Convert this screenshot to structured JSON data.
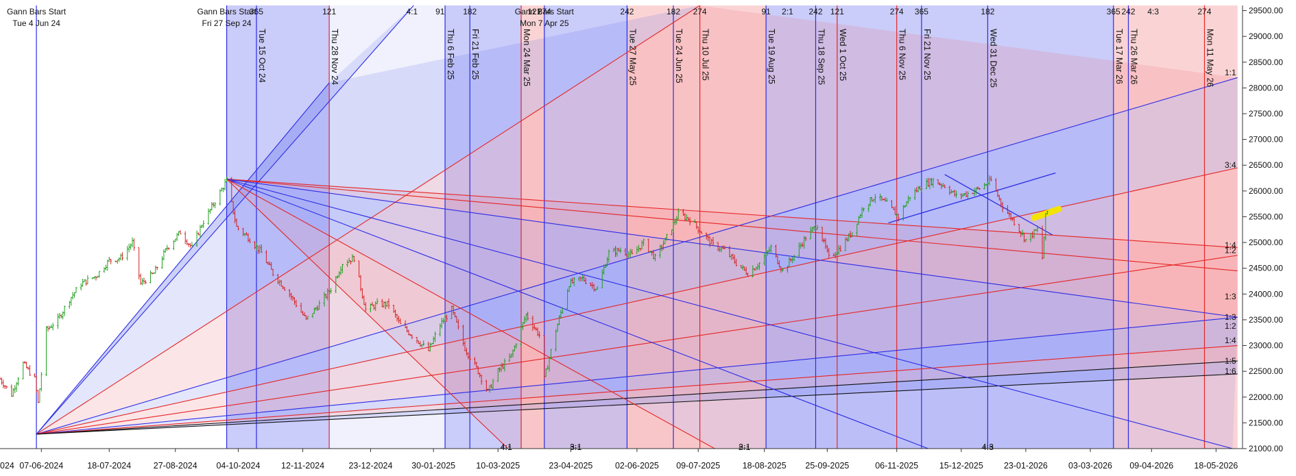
{
  "chart_data": {
    "type": "line",
    "title": "",
    "xlabel": "",
    "ylabel": "",
    "ylim": [
      21000,
      29600
    ],
    "x_range": [
      "2024-05-13",
      "2026-06-03"
    ],
    "y_ticks": [
      21000,
      21500,
      22000,
      22500,
      23000,
      23500,
      24000,
      24500,
      25000,
      25500,
      26000,
      26500,
      27000,
      27500,
      28000,
      28500,
      29000,
      29500
    ],
    "x_tick_labels": [
      {
        "date": "2024-06-07",
        "label": "07-06-2024"
      },
      {
        "date": "2024-07-18",
        "label": "18-07-2024"
      },
      {
        "date": "2024-08-27",
        "label": "27-08-2024"
      },
      {
        "date": "2024-10-04",
        "label": "04-10-2024"
      },
      {
        "date": "2024-11-12",
        "label": "12-11-2024"
      },
      {
        "date": "2024-12-23",
        "label": "23-12-2024"
      },
      {
        "date": "2025-01-30",
        "label": "30-01-2025"
      },
      {
        "date": "2025-03-10",
        "label": "10-03-2025"
      },
      {
        "date": "2025-04-23",
        "label": "23-04-2025"
      },
      {
        "date": "2025-06-02",
        "label": "02-06-2025"
      },
      {
        "date": "2025-07-09",
        "label": "09-07-2025"
      },
      {
        "date": "2025-08-18",
        "label": "18-08-2025"
      },
      {
        "date": "2025-09-25",
        "label": "25-09-2025"
      },
      {
        "date": "2025-11-06",
        "label": "06-11-2025"
      },
      {
        "date": "2025-12-15",
        "label": "15-12-2025"
      },
      {
        "date": "2026-01-23",
        "label": "23-01-2026"
      },
      {
        "date": "2026-03-03",
        "label": "03-03-2026"
      },
      {
        "date": "2026-04-09",
        "label": "09-04-2026"
      },
      {
        "date": "2026-05-18",
        "label": "18-05-2026"
      }
    ],
    "x_edge_label": "024",
    "gann_starts": [
      {
        "date": "2024-06-04",
        "label1": "Gann Bars Start",
        "label2": "Tue 4 Jun 24"
      },
      {
        "date": "2024-09-27",
        "label1": "Gann Bars Start",
        "label2": "Fri 27 Sep 24"
      },
      {
        "date": "2025-04-07",
        "label1": "Gann Bars Start",
        "label2": "Mon 7 Apr 25"
      }
    ],
    "time_cycle_lines": [
      {
        "date": "2024-06-04",
        "color": "blue",
        "label": ""
      },
      {
        "date": "2024-09-27",
        "color": "blue",
        "label": ""
      },
      {
        "date": "2024-10-15",
        "color": "blue",
        "label": "Tue 15 Oct 24"
      },
      {
        "date": "2024-11-28",
        "color": "red",
        "label": "Thu 28 Nov 24"
      },
      {
        "date": "2025-02-06",
        "color": "blue",
        "label": "Thu 6 Feb 25"
      },
      {
        "date": "2025-02-21",
        "color": "blue",
        "label": "Fri 21 Feb 25"
      },
      {
        "date": "2025-03-24",
        "color": "red",
        "label": "Mon 24 Mar 25"
      },
      {
        "date": "2025-04-07",
        "color": "blue",
        "label": ""
      },
      {
        "date": "2025-05-27",
        "color": "blue",
        "label": "Tue 27 May 25"
      },
      {
        "date": "2025-06-24",
        "color": "blue",
        "label": "Tue 24 Jun 25"
      },
      {
        "date": "2025-07-10",
        "color": "red",
        "label": "Thu 10 Jul 25"
      },
      {
        "date": "2025-08-19",
        "color": "blue",
        "label": "Tue 19 Aug 25"
      },
      {
        "date": "2025-09-18",
        "color": "blue",
        "label": "Thu 18 Sep 25"
      },
      {
        "date": "2025-10-01",
        "color": "red",
        "label": "Wed 1 Oct 25"
      },
      {
        "date": "2025-11-06",
        "color": "red",
        "label": "Thu 6 Nov 25"
      },
      {
        "date": "2025-11-21",
        "color": "blue",
        "label": "Fri 21 Nov 25"
      },
      {
        "date": "2025-12-31",
        "color": "blue",
        "label": "Wed 31 Dec 25"
      },
      {
        "date": "2026-03-17",
        "color": "blue",
        "label": "Tue 17 Mar 26"
      },
      {
        "date": "2026-03-26",
        "color": "blue",
        "label": "Thu 26 Mar 26"
      },
      {
        "date": "2026-05-11",
        "color": "red",
        "label": "Mon 11 May 26"
      }
    ],
    "time_bands": [
      {
        "from": "2024-09-27",
        "to": "2024-10-15",
        "color": "blue"
      },
      {
        "from": "2024-10-15",
        "to": "2024-11-28",
        "color": "blue"
      },
      {
        "from": "2024-11-28",
        "to": "2025-02-06",
        "color": "lightblue"
      },
      {
        "from": "2025-02-06",
        "to": "2025-02-21",
        "color": "blue"
      },
      {
        "from": "2025-02-21",
        "to": "2025-03-24",
        "color": "blue"
      },
      {
        "from": "2025-03-24",
        "to": "2025-04-07",
        "color": "red"
      },
      {
        "from": "2025-04-07",
        "to": "2025-05-27",
        "color": "blue"
      },
      {
        "from": "2025-05-27",
        "to": "2025-06-24",
        "color": "red"
      },
      {
        "from": "2025-06-24",
        "to": "2025-07-10",
        "color": "red"
      },
      {
        "from": "2025-07-10",
        "to": "2025-08-19",
        "color": "red"
      },
      {
        "from": "2025-08-19",
        "to": "2025-09-18",
        "color": "blue"
      },
      {
        "from": "2025-09-18",
        "to": "2025-10-01",
        "color": "blue"
      },
      {
        "from": "2025-10-01",
        "to": "2025-11-06",
        "color": "blue"
      },
      {
        "from": "2025-11-06",
        "to": "2025-11-21",
        "color": "blue"
      },
      {
        "from": "2025-11-21",
        "to": "2025-12-31",
        "color": "blue"
      },
      {
        "from": "2025-12-31",
        "to": "2026-03-17",
        "color": "blue"
      },
      {
        "from": "2026-03-17",
        "to": "2026-03-26",
        "color": "red"
      },
      {
        "from": "2026-03-26",
        "to": "2026-05-11",
        "color": "red"
      },
      {
        "from": "2026-05-11",
        "to": "2026-05-31",
        "color": "red"
      }
    ],
    "top_cycle_labels": [
      {
        "date": "2024-10-15",
        "text": "365"
      },
      {
        "date": "2024-11-28",
        "text": "121"
      },
      {
        "date": "2025-01-17",
        "text": "4:1"
      },
      {
        "date": "2025-02-03",
        "text": "91"
      },
      {
        "date": "2025-02-21",
        "text": "182"
      },
      {
        "date": "2025-04-01",
        "text": "121"
      },
      {
        "date": "2025-04-07",
        "text": "274"
      },
      {
        "date": "2025-05-27",
        "text": "242"
      },
      {
        "date": "2025-06-24",
        "text": "182"
      },
      {
        "date": "2025-07-10",
        "text": "274"
      },
      {
        "date": "2025-08-19",
        "text": "91"
      },
      {
        "date": "2025-09-01",
        "text": "2:1"
      },
      {
        "date": "2025-09-18",
        "text": "242"
      },
      {
        "date": "2025-10-01",
        "text": "121"
      },
      {
        "date": "2025-11-06",
        "text": "274"
      },
      {
        "date": "2025-11-21",
        "text": "365"
      },
      {
        "date": "2025-12-31",
        "text": "182"
      },
      {
        "date": "2026-03-17",
        "text": "365"
      },
      {
        "date": "2026-03-26",
        "text": "242"
      },
      {
        "date": "2026-04-10",
        "text": "4:3"
      },
      {
        "date": "2026-05-11",
        "text": "274"
      }
    ],
    "bottom_fan_labels": [
      {
        "date": "2025-03-15",
        "text": "4:1"
      },
      {
        "date": "2025-04-26",
        "text": "3:1"
      },
      {
        "date": "2025-08-06",
        "text": "2:1"
      },
      {
        "date": "2025-12-31",
        "text": "4:3"
      }
    ],
    "right_fan_labels": [
      {
        "value": 28300,
        "text": "1:1"
      },
      {
        "value": 26500,
        "text": "3:4"
      },
      {
        "value": 24950,
        "text": "1:4"
      },
      {
        "value": 24850,
        "text": "1:2"
      },
      {
        "value": 23950,
        "text": "1:3"
      },
      {
        "value": 23550,
        "text": "1:3"
      },
      {
        "value": 23380,
        "text": "1:2"
      },
      {
        "value": 23100,
        "text": "1:4"
      },
      {
        "value": 22700,
        "text": "1:5"
      },
      {
        "value": 22500,
        "text": "1:6"
      }
    ],
    "fan_up_origin": {
      "date": "2024-06-04",
      "value": 21280
    },
    "fan_up_lines": [
      {
        "to_date": "2025-01-18",
        "to_value": 29600,
        "color": "blue"
      },
      {
        "to_date": "2024-11-28",
        "to_value": 28100,
        "color": "blue"
      },
      {
        "to_date": "2025-07-10",
        "to_value": 29600,
        "color": "red"
      },
      {
        "to_date": "2026-05-31",
        "to_value": 28200,
        "color": "blue"
      },
      {
        "to_date": "2026-05-31",
        "to_value": 26450,
        "color": "red"
      },
      {
        "to_date": "2026-05-31",
        "to_value": 24750,
        "color": "red"
      },
      {
        "to_date": "2026-05-31",
        "to_value": 23550,
        "color": "blue"
      },
      {
        "to_date": "2026-05-31",
        "to_value": 23000,
        "color": "red"
      },
      {
        "to_date": "2026-05-31",
        "to_value": 22700,
        "color": "black"
      },
      {
        "to_date": "2026-05-31",
        "to_value": 22450,
        "color": "black"
      }
    ],
    "fan_down_origin": {
      "date": "2024-09-27",
      "value": 26230
    },
    "fan_down_lines": [
      {
        "to_date": "2026-05-31",
        "to_value": 24900,
        "color": "red"
      },
      {
        "to_date": "2026-05-31",
        "to_value": 24450,
        "color": "red"
      },
      {
        "to_date": "2026-05-31",
        "to_value": 23550,
        "color": "blue"
      },
      {
        "to_date": "2026-05-28",
        "to_value": 21000,
        "color": "blue"
      },
      {
        "to_date": "2025-11-25",
        "to_value": 21000,
        "color": "blue"
      },
      {
        "to_date": "2025-07-19",
        "to_value": 21000,
        "color": "red"
      },
      {
        "to_date": "2025-03-16",
        "to_value": 21000,
        "color": "red"
      }
    ],
    "channel_lines": [
      {
        "from_date": "2025-11-01",
        "from_value": 25380,
        "to_date": "2026-02-10",
        "to_value": 26350,
        "color": "blue"
      },
      {
        "from_date": "2025-12-05",
        "from_value": 26320,
        "to_date": "2026-02-08",
        "to_value": 25150,
        "color": "blue"
      }
    ],
    "highlight": {
      "from_date": "2026-01-28",
      "from_value": 25480,
      "to_date": "2026-02-12",
      "to_value": 25650,
      "color": "#f4e300"
    },
    "price_path": [
      [
        "2024-05-13",
        22350
      ],
      [
        "2024-05-20",
        22050
      ],
      [
        "2024-05-27",
        22650
      ],
      [
        "2024-06-03",
        22350
      ],
      [
        "2024-06-05",
        21880
      ],
      [
        "2024-06-10",
        23300
      ],
      [
        "2024-06-17",
        23500
      ],
      [
        "2024-06-24",
        23900
      ],
      [
        "2024-07-01",
        24200
      ],
      [
        "2024-07-10",
        24350
      ],
      [
        "2024-07-18",
        24650
      ],
      [
        "2024-07-25",
        24700
      ],
      [
        "2024-08-01",
        25000
      ],
      [
        "2024-08-06",
        24200
      ],
      [
        "2024-08-14",
        24400
      ],
      [
        "2024-08-22",
        24900
      ],
      [
        "2024-08-30",
        25200
      ],
      [
        "2024-09-06",
        24900
      ],
      [
        "2024-09-12",
        25350
      ],
      [
        "2024-09-20",
        25800
      ],
      [
        "2024-09-27",
        26200
      ],
      [
        "2024-10-03",
        25300
      ],
      [
        "2024-10-10",
        25100
      ],
      [
        "2024-10-18",
        24800
      ],
      [
        "2024-10-25",
        24400
      ],
      [
        "2024-11-04",
        24000
      ],
      [
        "2024-11-14",
        23500
      ],
      [
        "2024-11-22",
        23800
      ],
      [
        "2024-11-29",
        24100
      ],
      [
        "2024-12-06",
        24600
      ],
      [
        "2024-12-13",
        24700
      ],
      [
        "2024-12-20",
        23700
      ],
      [
        "2024-12-27",
        23800
      ],
      [
        "2025-01-03",
        23800
      ],
      [
        "2025-01-10",
        23400
      ],
      [
        "2025-01-17",
        23200
      ],
      [
        "2025-01-27",
        22900
      ],
      [
        "2025-02-03",
        23400
      ],
      [
        "2025-02-10",
        23700
      ],
      [
        "2025-02-18",
        22950
      ],
      [
        "2025-02-26",
        22500
      ],
      [
        "2025-03-04",
        22100
      ],
      [
        "2025-03-10",
        22500
      ],
      [
        "2025-03-18",
        22800
      ],
      [
        "2025-03-27",
        23600
      ],
      [
        "2025-04-04",
        23200
      ],
      [
        "2025-04-07",
        22350
      ],
      [
        "2025-04-14",
        23300
      ],
      [
        "2025-04-22",
        24200
      ],
      [
        "2025-04-30",
        24300
      ],
      [
        "2025-05-09",
        24100
      ],
      [
        "2025-05-16",
        24800
      ],
      [
        "2025-05-23",
        24850
      ],
      [
        "2025-05-30",
        24750
      ],
      [
        "2025-06-06",
        25000
      ],
      [
        "2025-06-13",
        24700
      ],
      [
        "2025-06-20",
        25100
      ],
      [
        "2025-06-27",
        25550
      ],
      [
        "2025-07-04",
        25450
      ],
      [
        "2025-07-11",
        25200
      ],
      [
        "2025-07-18",
        24950
      ],
      [
        "2025-07-25",
        24850
      ],
      [
        "2025-08-01",
        24600
      ],
      [
        "2025-08-08",
        24400
      ],
      [
        "2025-08-15",
        24600
      ],
      [
        "2025-08-22",
        24900
      ],
      [
        "2025-08-29",
        24450
      ],
      [
        "2025-09-05",
        24750
      ],
      [
        "2025-09-12",
        25100
      ],
      [
        "2025-09-19",
        25350
      ],
      [
        "2025-09-26",
        24700
      ],
      [
        "2025-10-03",
        24900
      ],
      [
        "2025-10-10",
        25200
      ],
      [
        "2025-10-17",
        25700
      ],
      [
        "2025-10-24",
        25900
      ],
      [
        "2025-10-31",
        25750
      ],
      [
        "2025-11-07",
        25500
      ],
      [
        "2025-11-14",
        25900
      ],
      [
        "2025-11-21",
        26100
      ],
      [
        "2025-11-28",
        26200
      ],
      [
        "2025-12-05",
        26100
      ],
      [
        "2025-12-12",
        25900
      ],
      [
        "2025-12-19",
        25950
      ],
      [
        "2025-12-26",
        26050
      ],
      [
        "2026-01-02",
        26200
      ],
      [
        "2026-01-09",
        25700
      ],
      [
        "2026-01-16",
        25400
      ],
      [
        "2026-01-23",
        25050
      ],
      [
        "2026-01-30",
        25250
      ],
      [
        "2026-02-02",
        24700
      ],
      [
        "2026-02-04",
        25500
      ],
      [
        "2026-02-06",
        25700
      ]
    ]
  }
}
